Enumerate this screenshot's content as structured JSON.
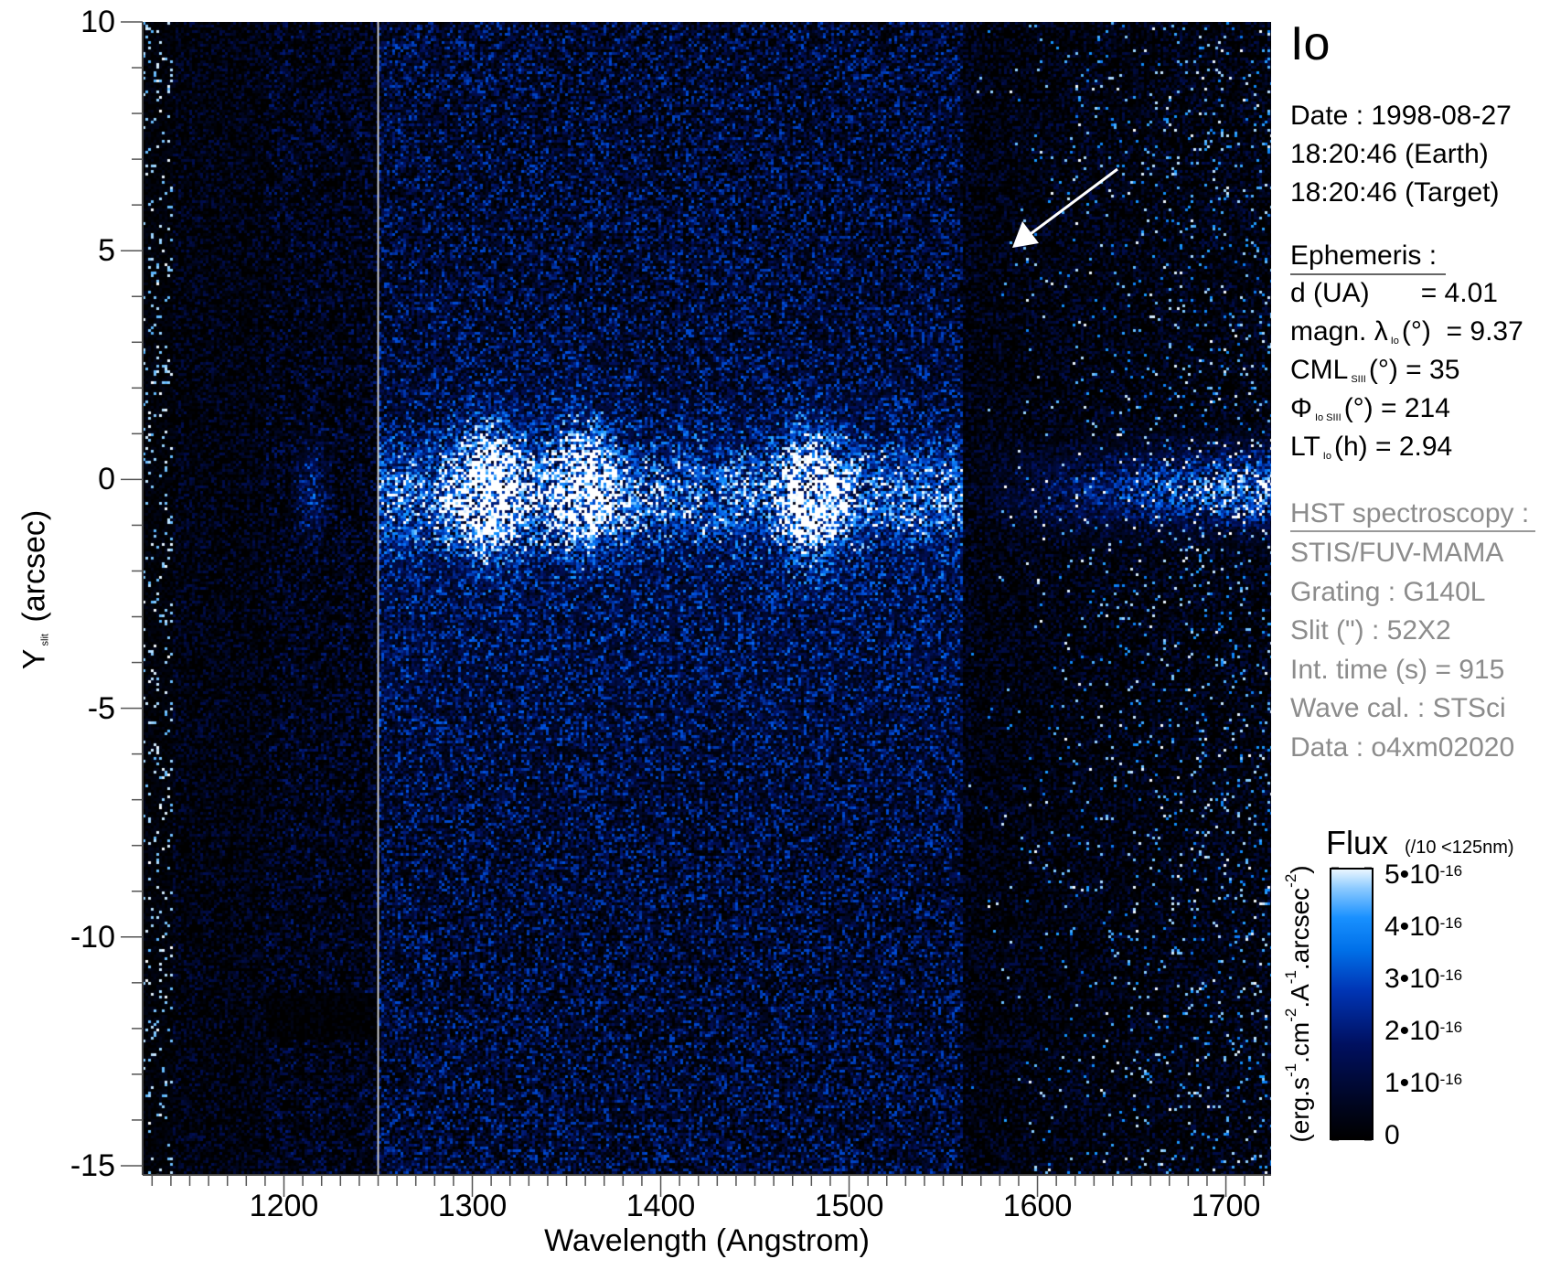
{
  "chart_data": {
    "type": "heatmap",
    "title": "",
    "xlabel": "Wavelength (Angstrom)",
    "ylabel": {
      "main": "Y",
      "sub": "slit",
      "rest": " (arcsec)"
    },
    "xlim": [
      1125,
      1724
    ],
    "ylim": [
      -15.2,
      10
    ],
    "xticks": [
      1200,
      1300,
      1400,
      1500,
      1600,
      1700
    ],
    "xtick_labels": [
      "1200",
      "1300",
      "1400",
      "1500",
      "1600",
      "1700"
    ],
    "yticks": [
      10,
      5,
      0,
      -5,
      -10,
      -15
    ],
    "ytick_labels": [
      "10",
      "5",
      "0",
      "-5",
      "-10",
      "-15"
    ],
    "grid": false,
    "colormap": [
      "#000000",
      "#001060",
      "#0070e8",
      "#8ccaff",
      "#ffffff"
    ],
    "vertical_marker_wavelength": 1250,
    "colorbar": {
      "title": "Flux",
      "note": "(/10 <125nm)",
      "range": [
        0,
        5e-16
      ],
      "ticks": [
        {
          "base": "5•10",
          "exp": "-16"
        },
        {
          "base": "4•10",
          "exp": "-16"
        },
        {
          "base": "3•10",
          "exp": "-16"
        },
        {
          "base": "2•10",
          "exp": "-16"
        },
        {
          "base": "1•10",
          "exp": "-16"
        },
        {
          "base": "0",
          "exp": ""
        }
      ],
      "label_parts": [
        {
          "t": "(erg.s",
          "sup": false
        },
        {
          "t": "-1",
          "sup": true
        },
        {
          "t": ".cm",
          "sup": false
        },
        {
          "t": "-2",
          "sup": true
        },
        {
          "t": ".A",
          "sup": false
        },
        {
          "t": "-1",
          "sup": true
        },
        {
          "t": ".arcsec",
          "sup": false
        },
        {
          "t": "-2",
          "sup": true
        },
        {
          "t": ")",
          "sup": false
        }
      ]
    }
  },
  "info": {
    "target": "Io",
    "date": "Date : 1998-08-27",
    "time_earth": "18:20:46 (Earth)",
    "time_target": "18:20:46 (Target)",
    "ephemeris_header": "Ephemeris :",
    "ephemeris": [
      {
        "main": "d (UA)",
        "sub": "",
        "rest": "      = 4.01"
      },
      {
        "main": "magn. λ",
        "sub": "Io",
        "rest": "(°)  = 9.37"
      },
      {
        "main": "CML",
        "sub": "SIII",
        "rest": "(°) = 35"
      },
      {
        "main": "Φ",
        "sub": "Io SIII",
        "rest": "(°) = 214"
      },
      {
        "main": "LT",
        "sub": "Io",
        "rest": "(h) = 2.94"
      }
    ],
    "hst_header": "HST spectroscopy :",
    "hst": [
      "STIS/FUV-MAMA",
      "Grating : G140L",
      "Slit (\") : 52X2",
      "Int. time (s) = 915",
      "Wave cal. : STSci",
      "Data : o4xm02020"
    ]
  }
}
